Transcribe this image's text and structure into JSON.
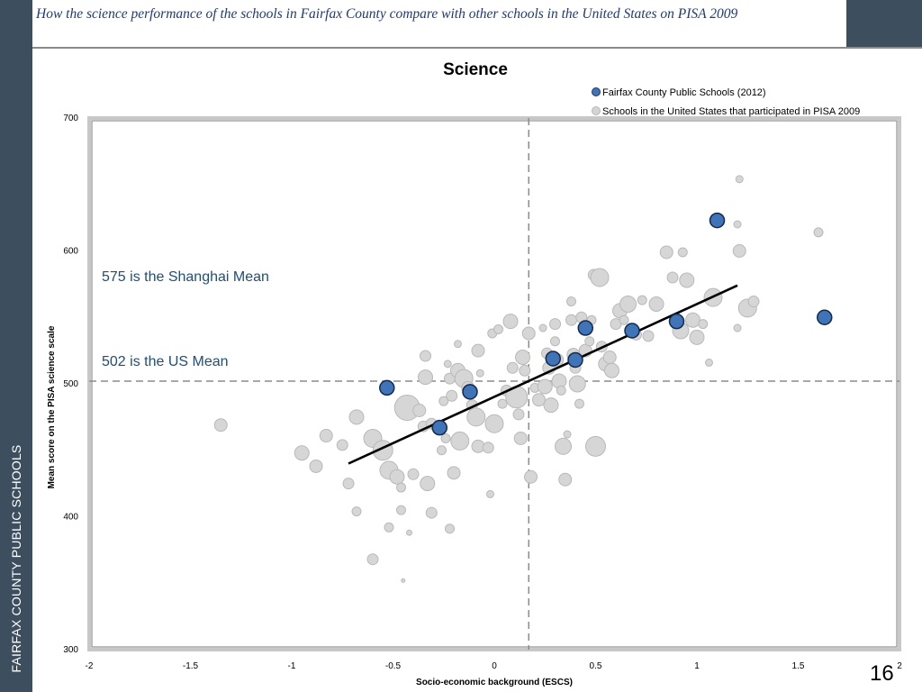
{
  "sidebar": {
    "label": "FAIRFAX COUNTY PUBLIC SCHOOLS"
  },
  "header": {
    "title": "How the science performance of the schools in Fairfax County compare with other schools in the United States on PISA 2009"
  },
  "page_number": "16",
  "colors": {
    "sidebar": "#3d4f5f",
    "fcps_marker": "#3f74b8",
    "us_marker": "#d4d4d4",
    "annotation": "#1f4e79",
    "trend": "#000000"
  },
  "chart_data": {
    "type": "scatter",
    "title": "Science",
    "xlabel": "Socio-economic background (ESCS)",
    "ylabel": "Mean score on the PISA science scale",
    "xlim": [
      -2,
      2
    ],
    "ylim": [
      300,
      700
    ],
    "xticks": [
      -2,
      -1.5,
      -1,
      -0.5,
      0,
      0.5,
      1,
      1.5,
      2
    ],
    "xtick_labels": [
      "-2",
      "-1.5",
      "-1",
      "-0.5",
      "0",
      "0.5",
      "1",
      "1.5",
      "2"
    ],
    "yticks": [
      300,
      400,
      500,
      600,
      700
    ],
    "ytick_labels": [
      "300",
      "400",
      "500",
      "600",
      "700"
    ],
    "grid": false,
    "legend_position": "top-right",
    "reference_lines": {
      "us_mean_score": 502,
      "us_mean_escs": 0.17
    },
    "annotations": [
      "575 is the Shanghai  Mean",
      "502 is the US Mean"
    ],
    "trend_line": {
      "x": [
        -0.72,
        1.2
      ],
      "y": [
        440,
        574
      ]
    },
    "series": [
      {
        "name": "Fairfax County Public Schools (2012)",
        "points": [
          {
            "x": -0.53,
            "y": 497
          },
          {
            "x": -0.27,
            "y": 467
          },
          {
            "x": -0.12,
            "y": 494
          },
          {
            "x": 0.29,
            "y": 519
          },
          {
            "x": 0.4,
            "y": 518
          },
          {
            "x": 0.45,
            "y": 542
          },
          {
            "x": 0.68,
            "y": 540
          },
          {
            "x": 0.9,
            "y": 547
          },
          {
            "x": 1.1,
            "y": 623
          },
          {
            "x": 1.63,
            "y": 550
          }
        ]
      },
      {
        "name": "Schools in the United States that participated in PISA 2009",
        "points": [
          {
            "x": -1.35,
            "y": 469,
            "s": 7
          },
          {
            "x": -0.95,
            "y": 448,
            "s": 8
          },
          {
            "x": -0.88,
            "y": 438,
            "s": 7
          },
          {
            "x": -0.83,
            "y": 461,
            "s": 7
          },
          {
            "x": -0.75,
            "y": 454,
            "s": 6
          },
          {
            "x": -0.72,
            "y": 425,
            "s": 6
          },
          {
            "x": -0.68,
            "y": 475,
            "s": 8
          },
          {
            "x": -0.68,
            "y": 404,
            "s": 5
          },
          {
            "x": -0.6,
            "y": 368,
            "s": 6
          },
          {
            "x": -0.6,
            "y": 459,
            "s": 10
          },
          {
            "x": -0.55,
            "y": 450,
            "s": 11
          },
          {
            "x": -0.52,
            "y": 435,
            "s": 10
          },
          {
            "x": -0.52,
            "y": 392,
            "s": 5
          },
          {
            "x": -0.48,
            "y": 430,
            "s": 8
          },
          {
            "x": -0.46,
            "y": 422,
            "s": 5
          },
          {
            "x": -0.46,
            "y": 405,
            "s": 5
          },
          {
            "x": -0.45,
            "y": 352,
            "s": 2
          },
          {
            "x": -0.43,
            "y": 482,
            "s": 14
          },
          {
            "x": -0.42,
            "y": 388,
            "s": 3
          },
          {
            "x": -0.4,
            "y": 432,
            "s": 6
          },
          {
            "x": -0.37,
            "y": 480,
            "s": 7
          },
          {
            "x": -0.35,
            "y": 468,
            "s": 6
          },
          {
            "x": -0.34,
            "y": 505,
            "s": 8
          },
          {
            "x": -0.34,
            "y": 521,
            "s": 6
          },
          {
            "x": -0.33,
            "y": 425,
            "s": 8
          },
          {
            "x": -0.31,
            "y": 470,
            "s": 6
          },
          {
            "x": -0.31,
            "y": 403,
            "s": 6
          },
          {
            "x": -0.26,
            "y": 450,
            "s": 5
          },
          {
            "x": -0.25,
            "y": 487,
            "s": 5
          },
          {
            "x": -0.24,
            "y": 459,
            "s": 5
          },
          {
            "x": -0.23,
            "y": 515,
            "s": 4
          },
          {
            "x": -0.22,
            "y": 504,
            "s": 6
          },
          {
            "x": -0.22,
            "y": 391,
            "s": 5
          },
          {
            "x": -0.21,
            "y": 491,
            "s": 6
          },
          {
            "x": -0.2,
            "y": 433,
            "s": 7
          },
          {
            "x": -0.18,
            "y": 510,
            "s": 8
          },
          {
            "x": -0.18,
            "y": 530,
            "s": 4
          },
          {
            "x": -0.17,
            "y": 457,
            "s": 10
          },
          {
            "x": -0.15,
            "y": 504,
            "s": 10
          },
          {
            "x": -0.13,
            "y": 497,
            "s": 7
          },
          {
            "x": -0.11,
            "y": 484,
            "s": 6
          },
          {
            "x": -0.09,
            "y": 475,
            "s": 10
          },
          {
            "x": -0.08,
            "y": 525,
            "s": 7
          },
          {
            "x": -0.08,
            "y": 453,
            "s": 7
          },
          {
            "x": -0.07,
            "y": 508,
            "s": 4
          },
          {
            "x": -0.03,
            "y": 452,
            "s": 6
          },
          {
            "x": -0.02,
            "y": 417,
            "s": 4
          },
          {
            "x": -0.01,
            "y": 538,
            "s": 5
          },
          {
            "x": 0.0,
            "y": 470,
            "s": 10
          },
          {
            "x": 0.02,
            "y": 541,
            "s": 5
          },
          {
            "x": 0.04,
            "y": 485,
            "s": 5
          },
          {
            "x": 0.06,
            "y": 495,
            "s": 6
          },
          {
            "x": 0.08,
            "y": 547,
            "s": 8
          },
          {
            "x": 0.09,
            "y": 512,
            "s": 6
          },
          {
            "x": 0.11,
            "y": 490,
            "s": 12
          },
          {
            "x": 0.12,
            "y": 477,
            "s": 6
          },
          {
            "x": 0.13,
            "y": 459,
            "s": 7
          },
          {
            "x": 0.14,
            "y": 520,
            "s": 8
          },
          {
            "x": 0.15,
            "y": 510,
            "s": 6
          },
          {
            "x": 0.17,
            "y": 538,
            "s": 7
          },
          {
            "x": 0.18,
            "y": 430,
            "s": 7
          },
          {
            "x": 0.2,
            "y": 497,
            "s": 5
          },
          {
            "x": 0.22,
            "y": 488,
            "s": 7
          },
          {
            "x": 0.24,
            "y": 542,
            "s": 4
          },
          {
            "x": 0.25,
            "y": 498,
            "s": 8
          },
          {
            "x": 0.26,
            "y": 523,
            "s": 6
          },
          {
            "x": 0.27,
            "y": 512,
            "s": 7
          },
          {
            "x": 0.28,
            "y": 484,
            "s": 8
          },
          {
            "x": 0.3,
            "y": 545,
            "s": 6
          },
          {
            "x": 0.3,
            "y": 532,
            "s": 5
          },
          {
            "x": 0.31,
            "y": 518,
            "s": 7
          },
          {
            "x": 0.32,
            "y": 502,
            "s": 8
          },
          {
            "x": 0.33,
            "y": 495,
            "s": 5
          },
          {
            "x": 0.34,
            "y": 453,
            "s": 9
          },
          {
            "x": 0.35,
            "y": 428,
            "s": 7
          },
          {
            "x": 0.36,
            "y": 462,
            "s": 4
          },
          {
            "x": 0.38,
            "y": 562,
            "s": 5
          },
          {
            "x": 0.38,
            "y": 548,
            "s": 6
          },
          {
            "x": 0.39,
            "y": 522,
            "s": 7
          },
          {
            "x": 0.4,
            "y": 512,
            "s": 6
          },
          {
            "x": 0.41,
            "y": 500,
            "s": 9
          },
          {
            "x": 0.42,
            "y": 485,
            "s": 5
          },
          {
            "x": 0.43,
            "y": 550,
            "s": 6
          },
          {
            "x": 0.45,
            "y": 525,
            "s": 7
          },
          {
            "x": 0.47,
            "y": 532,
            "s": 5
          },
          {
            "x": 0.48,
            "y": 548,
            "s": 5
          },
          {
            "x": 0.49,
            "y": 582,
            "s": 6
          },
          {
            "x": 0.5,
            "y": 453,
            "s": 11
          },
          {
            "x": 0.52,
            "y": 580,
            "s": 10
          },
          {
            "x": 0.53,
            "y": 528,
            "s": 6
          },
          {
            "x": 0.55,
            "y": 515,
            "s": 8
          },
          {
            "x": 0.57,
            "y": 520,
            "s": 7
          },
          {
            "x": 0.58,
            "y": 510,
            "s": 8
          },
          {
            "x": 0.6,
            "y": 545,
            "s": 6
          },
          {
            "x": 0.62,
            "y": 555,
            "s": 8
          },
          {
            "x": 0.64,
            "y": 548,
            "s": 5
          },
          {
            "x": 0.66,
            "y": 560,
            "s": 9
          },
          {
            "x": 0.7,
            "y": 537,
            "s": 6
          },
          {
            "x": 0.73,
            "y": 563,
            "s": 5
          },
          {
            "x": 0.76,
            "y": 536,
            "s": 6
          },
          {
            "x": 0.8,
            "y": 560,
            "s": 8
          },
          {
            "x": 0.85,
            "y": 599,
            "s": 7
          },
          {
            "x": 0.88,
            "y": 580,
            "s": 6
          },
          {
            "x": 0.92,
            "y": 540,
            "s": 9
          },
          {
            "x": 0.93,
            "y": 599,
            "s": 5
          },
          {
            "x": 0.95,
            "y": 578,
            "s": 8
          },
          {
            "x": 0.98,
            "y": 548,
            "s": 8
          },
          {
            "x": 1.0,
            "y": 535,
            "s": 8
          },
          {
            "x": 1.03,
            "y": 545,
            "s": 5
          },
          {
            "x": 1.06,
            "y": 516,
            "s": 4
          },
          {
            "x": 1.08,
            "y": 565,
            "s": 10
          },
          {
            "x": 1.2,
            "y": 542,
            "s": 4
          },
          {
            "x": 1.2,
            "y": 620,
            "s": 4
          },
          {
            "x": 1.21,
            "y": 600,
            "s": 7
          },
          {
            "x": 1.21,
            "y": 654,
            "s": 4
          },
          {
            "x": 1.25,
            "y": 557,
            "s": 10
          },
          {
            "x": 1.28,
            "y": 562,
            "s": 6
          },
          {
            "x": 1.6,
            "y": 614,
            "s": 5
          }
        ]
      }
    ]
  }
}
